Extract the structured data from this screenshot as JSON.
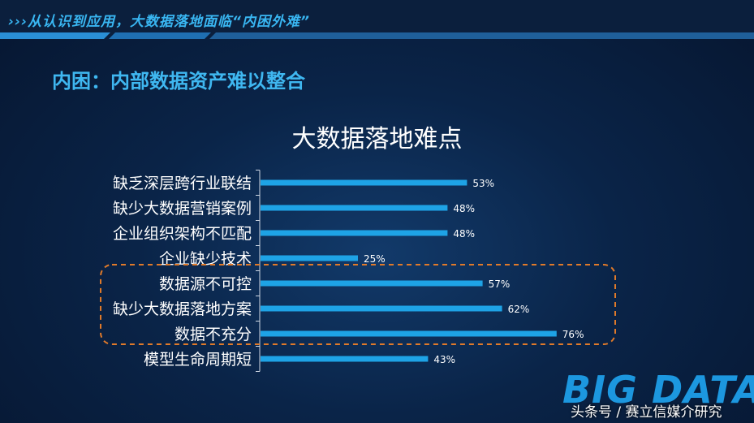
{
  "banner": {
    "text": "›››从认识到应用，大数据落地面临“内困外难”"
  },
  "subtitle": "内困：内部数据资产难以整合",
  "colors": {
    "bar": "#1ea3e6",
    "highlight": "#e07a2a",
    "banner_text": "#39b6f2"
  },
  "watermark": {
    "logo": "BIG DATA",
    "caption": "头条号 / 赛立信媒介研究"
  },
  "chart_data": {
    "type": "bar",
    "orientation": "horizontal",
    "title": "大数据落地难点",
    "categories": [
      "缺乏深层跨行业联结",
      "缺少大数据营销案例",
      "企业组织架构不匹配",
      "企业缺少技术",
      "数据源不可控",
      "缺少大数据落地方案",
      "数据不充分",
      "模型生命周期短"
    ],
    "values": [
      53,
      48,
      48,
      25,
      57,
      62,
      76,
      43
    ],
    "labels": [
      "53%",
      "48%",
      "48%",
      "25%",
      "57%",
      "62%",
      "76%",
      "43%"
    ],
    "unit": "%",
    "xlim": [
      0,
      100
    ],
    "grid": false,
    "legend": "none",
    "highlighted_categories": [
      "数据源不可控",
      "缺少大数据落地方案",
      "数据不充分"
    ]
  }
}
